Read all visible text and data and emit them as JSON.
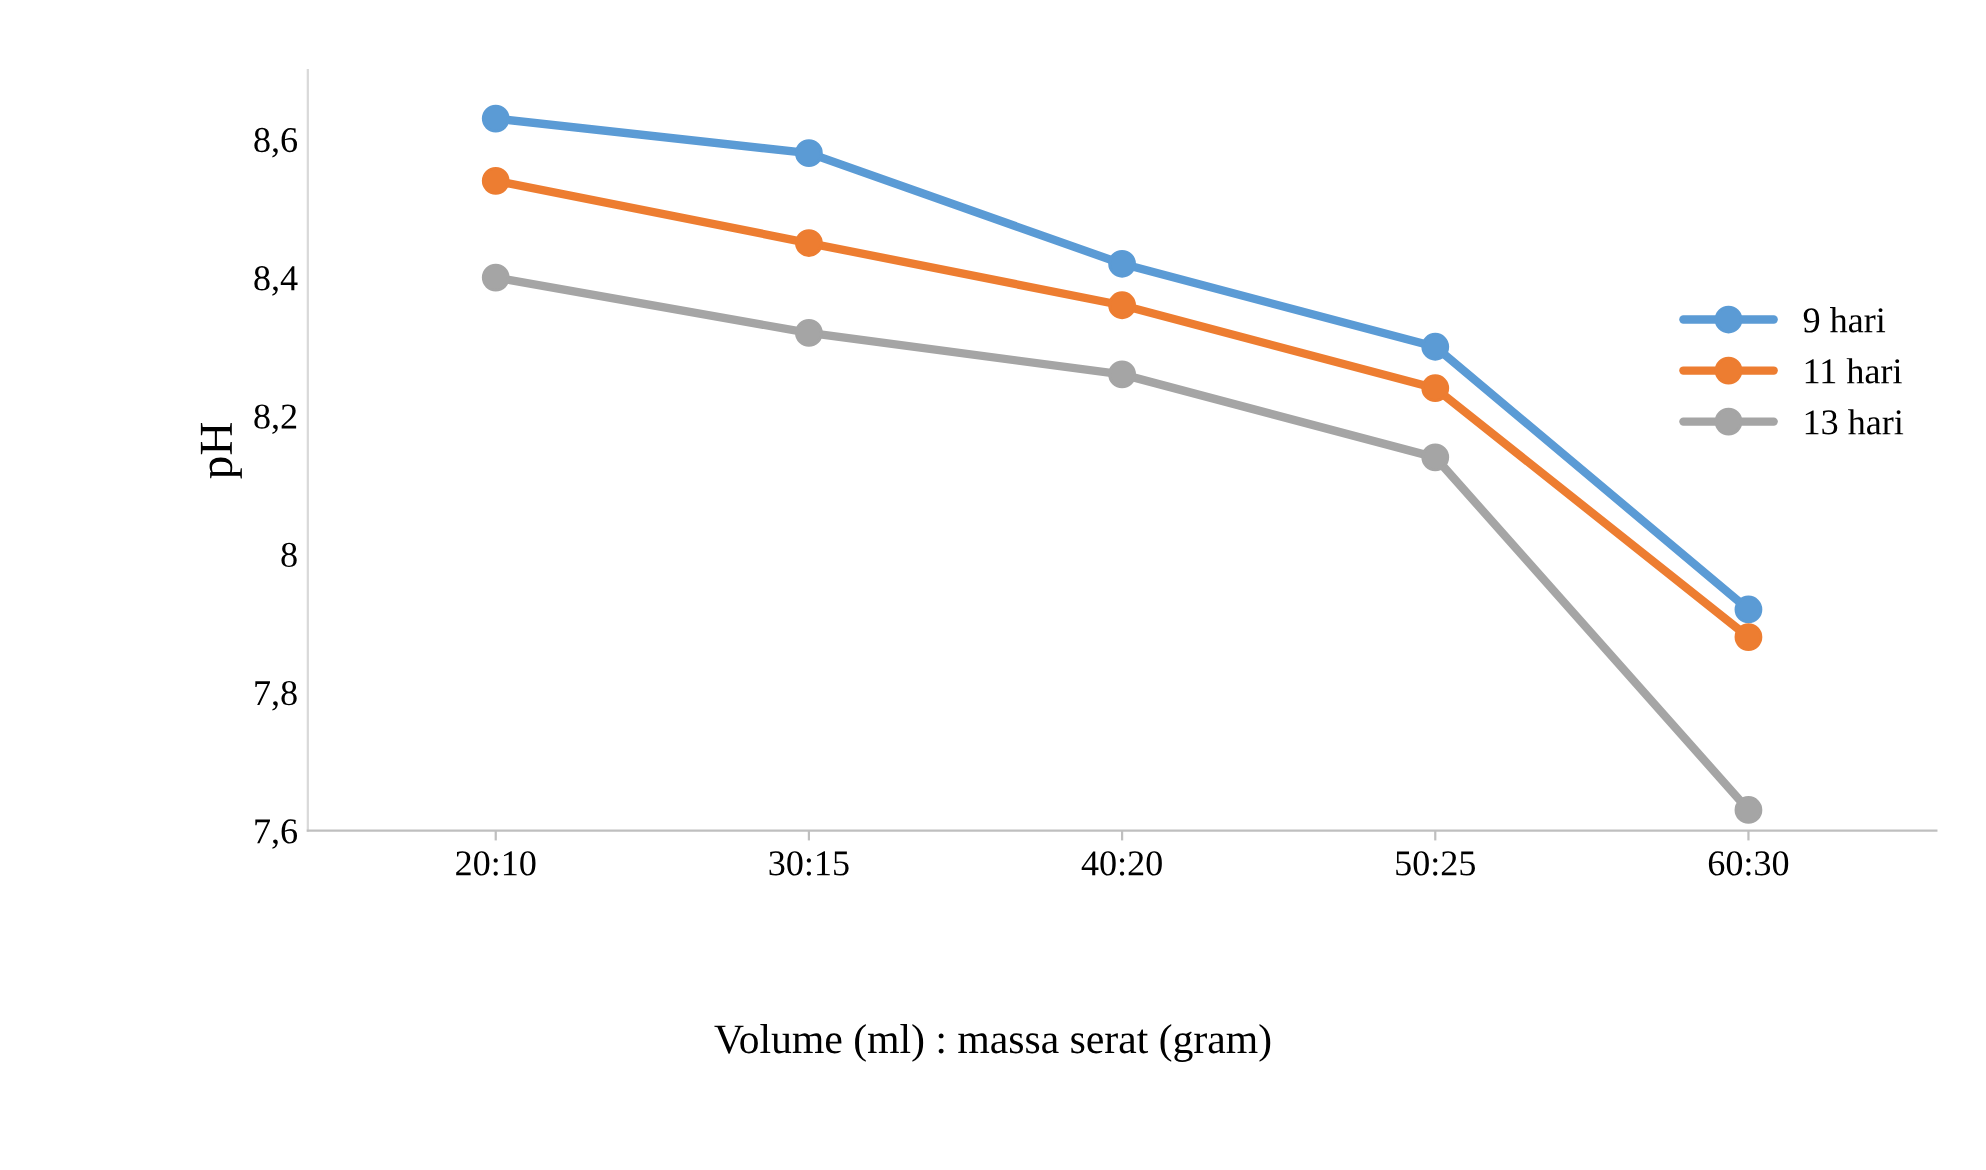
{
  "chart_data": {
    "type": "line",
    "xlabel": "Volume (ml) : massa serat (gram)",
    "ylabel": "pH",
    "categories": [
      "20:10",
      "30:15",
      "40:20",
      "50:25",
      "60:30"
    ],
    "series": [
      {
        "name": "9 hari",
        "color": "#5b9bd5",
        "values": [
          8.63,
          8.58,
          8.42,
          8.3,
          7.92
        ]
      },
      {
        "name": "11 hari",
        "color": "#ed7d31",
        "values": [
          8.54,
          8.45,
          8.36,
          8.24,
          7.88
        ]
      },
      {
        "name": "13 hari",
        "color": "#a5a5a5",
        "values": [
          8.4,
          8.32,
          8.26,
          8.14,
          7.63
        ]
      }
    ],
    "ylim": [
      7.6,
      8.7
    ],
    "yticks": [
      {
        "value": 7.6,
        "label": "7,6"
      },
      {
        "value": 7.8,
        "label": "7,8"
      },
      8,
      {
        "value": 8.2,
        "label": "8,2"
      },
      {
        "value": 8.4,
        "label": "8,4"
      },
      {
        "value": 8.6,
        "label": "8,6"
      }
    ],
    "grid": false,
    "legend": "right",
    "marker": "circle",
    "line_style": "solid"
  }
}
